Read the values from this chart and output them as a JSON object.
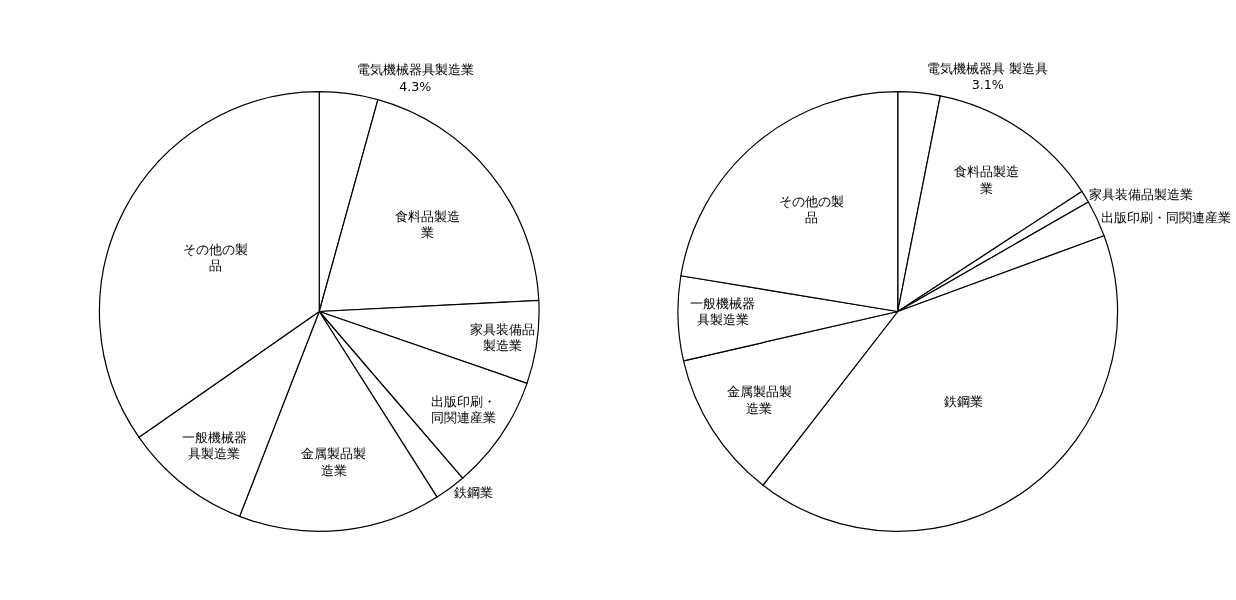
{
  "chart_data": [
    {
      "type": "pie",
      "categories": [
        "電気機械器具製造業",
        "食料品製造業",
        "家具装備品製造業",
        "出版印刷・同関連産業",
        "鉄鋼業",
        "金属製品製造業",
        "一般機械器具製造業",
        "その他の製品"
      ],
      "values": [
        4.3,
        19.9,
        6.1,
        8.4,
        2.3,
        14.9,
        9.4,
        34.7
      ],
      "value_labels": [
        "4.3%",
        null,
        null,
        null,
        null,
        null,
        null,
        null
      ],
      "colors": [
        "#ffffff",
        "#ffffff",
        "#ffffff",
        "#ffffff",
        "#ffffff",
        "#ffffff",
        "#ffffff",
        "#ffffff"
      ],
      "legend": false
    },
    {
      "type": "pie",
      "categories": [
        "電気機械器具 製造具",
        "食料品製造業",
        "家具装備品製造業",
        "出版印刷・同関連産業",
        "鉄鋼業",
        "金属製品製造業",
        "一般機械器具製造業",
        "その他の製品"
      ],
      "values": [
        3.1,
        12.7,
        0.9,
        2.7,
        41.1,
        10.9,
        6.2,
        22.4
      ],
      "value_labels": [
        "3.1%",
        null,
        null,
        null,
        null,
        null,
        null,
        null
      ],
      "colors": [
        "#ffffff",
        "#ffffff",
        "#ffffff",
        "#ffffff",
        "#ffffff",
        "#ffffff",
        "#ffffff",
        "#ffffff"
      ],
      "legend": false
    }
  ]
}
